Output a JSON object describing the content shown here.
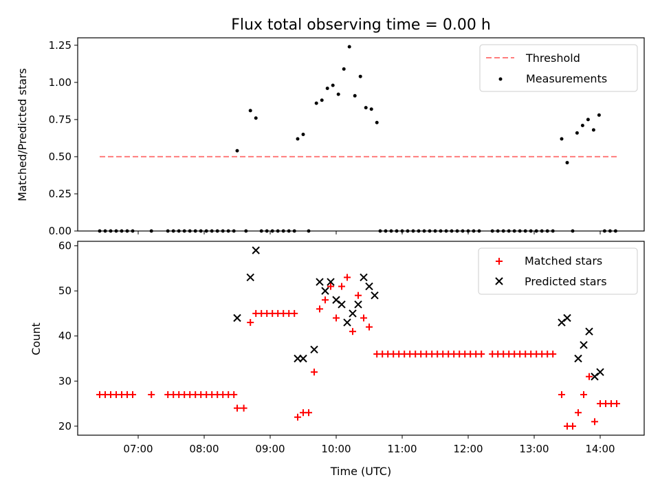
{
  "chart_data": [
    {
      "type": "scatter",
      "title": "Flux total observing time = 0.00 h",
      "ylabel": "Matched/Predicted stars",
      "xlabel": "",
      "xlim": [
        "06:05",
        "14:40"
      ],
      "ylim": [
        0,
        1.3
      ],
      "y_ticks": [
        "0.00",
        "0.25",
        "0.50",
        "0.75",
        "1.00",
        "1.25"
      ],
      "legend_position": "top-right",
      "threshold": {
        "name": "Threshold",
        "value": 0.5,
        "x_start": "06:25",
        "x_end": "14:15",
        "style": "dashed",
        "color": "#ff7b7b"
      },
      "series": [
        {
          "name": "Measurements",
          "color": "#000000",
          "points": [
            [
              "06:25",
              0
            ],
            [
              "06:30",
              0
            ],
            [
              "06:35",
              0
            ],
            [
              "06:40",
              0
            ],
            [
              "06:45",
              0
            ],
            [
              "06:50",
              0
            ],
            [
              "06:55",
              0
            ],
            [
              "07:12",
              0
            ],
            [
              "07:27",
              0
            ],
            [
              "07:32",
              0
            ],
            [
              "07:37",
              0
            ],
            [
              "07:42",
              0
            ],
            [
              "07:47",
              0
            ],
            [
              "07:52",
              0
            ],
            [
              "07:57",
              0
            ],
            [
              "08:02",
              0
            ],
            [
              "08:07",
              0
            ],
            [
              "08:12",
              0
            ],
            [
              "08:17",
              0
            ],
            [
              "08:22",
              0
            ],
            [
              "08:27",
              0
            ],
            [
              "08:30",
              0.54
            ],
            [
              "08:38",
              0
            ],
            [
              "08:42",
              0.81
            ],
            [
              "08:47",
              0.76
            ],
            [
              "08:52",
              0
            ],
            [
              "08:57",
              0
            ],
            [
              "09:02",
              0
            ],
            [
              "09:07",
              0
            ],
            [
              "09:12",
              0
            ],
            [
              "09:17",
              0
            ],
            [
              "09:22",
              0
            ],
            [
              "09:25",
              0.62
            ],
            [
              "09:30",
              0.65
            ],
            [
              "09:35",
              0
            ],
            [
              "09:42",
              0.86
            ],
            [
              "09:47",
              0.88
            ],
            [
              "09:52",
              0.96
            ],
            [
              "09:57",
              0.98
            ],
            [
              "10:02",
              0.92
            ],
            [
              "10:07",
              1.09
            ],
            [
              "10:12",
              1.24
            ],
            [
              "10:17",
              0.91
            ],
            [
              "10:22",
              1.04
            ],
            [
              "10:27",
              0.83
            ],
            [
              "10:32",
              0.82
            ],
            [
              "10:37",
              0.73
            ],
            [
              "10:40",
              0
            ],
            [
              "10:45",
              0
            ],
            [
              "10:50",
              0
            ],
            [
              "10:55",
              0
            ],
            [
              "11:00",
              0
            ],
            [
              "11:05",
              0
            ],
            [
              "11:10",
              0
            ],
            [
              "11:15",
              0
            ],
            [
              "11:20",
              0
            ],
            [
              "11:25",
              0
            ],
            [
              "11:30",
              0
            ],
            [
              "11:35",
              0
            ],
            [
              "11:40",
              0
            ],
            [
              "11:45",
              0
            ],
            [
              "11:50",
              0
            ],
            [
              "11:55",
              0
            ],
            [
              "12:00",
              0
            ],
            [
              "12:05",
              0
            ],
            [
              "12:10",
              0
            ],
            [
              "12:22",
              0
            ],
            [
              "12:27",
              0
            ],
            [
              "12:32",
              0
            ],
            [
              "12:37",
              0
            ],
            [
              "12:42",
              0
            ],
            [
              "12:47",
              0
            ],
            [
              "12:52",
              0
            ],
            [
              "12:57",
              0
            ],
            [
              "13:02",
              0
            ],
            [
              "13:07",
              0
            ],
            [
              "13:12",
              0
            ],
            [
              "13:17",
              0
            ],
            [
              "13:25",
              0.62
            ],
            [
              "13:30",
              0.46
            ],
            [
              "13:35",
              0
            ],
            [
              "13:39",
              0.66
            ],
            [
              "13:44",
              0.71
            ],
            [
              "13:49",
              0.75
            ],
            [
              "13:54",
              0.68
            ],
            [
              "13:59",
              0.78
            ],
            [
              "14:04",
              0
            ],
            [
              "14:09",
              0
            ],
            [
              "14:14",
              0
            ]
          ]
        }
      ]
    },
    {
      "type": "scatter",
      "title": "",
      "ylabel": "Count",
      "xlabel": "Time (UTC)",
      "xlim": [
        "06:05",
        "14:40"
      ],
      "ylim": [
        18,
        61
      ],
      "y_ticks": [
        "20",
        "30",
        "40",
        "50",
        "60"
      ],
      "x_ticks": [
        "07:00",
        "08:00",
        "09:00",
        "10:00",
        "11:00",
        "12:00",
        "13:00",
        "14:00"
      ],
      "legend_position": "top-right",
      "series": [
        {
          "name": "Matched stars",
          "color": "#ff0000",
          "marker": "+",
          "points": [
            [
              "06:25",
              27
            ],
            [
              "06:30",
              27
            ],
            [
              "06:35",
              27
            ],
            [
              "06:40",
              27
            ],
            [
              "06:45",
              27
            ],
            [
              "06:50",
              27
            ],
            [
              "06:55",
              27
            ],
            [
              "07:12",
              27
            ],
            [
              "07:27",
              27
            ],
            [
              "07:32",
              27
            ],
            [
              "07:37",
              27
            ],
            [
              "07:42",
              27
            ],
            [
              "07:47",
              27
            ],
            [
              "07:52",
              27
            ],
            [
              "07:57",
              27
            ],
            [
              "08:02",
              27
            ],
            [
              "08:07",
              27
            ],
            [
              "08:12",
              27
            ],
            [
              "08:17",
              27
            ],
            [
              "08:22",
              27
            ],
            [
              "08:27",
              27
            ],
            [
              "08:30",
              24
            ],
            [
              "08:36",
              24
            ],
            [
              "08:42",
              43
            ],
            [
              "08:47",
              45
            ],
            [
              "08:52",
              45
            ],
            [
              "08:57",
              45
            ],
            [
              "09:02",
              45
            ],
            [
              "09:07",
              45
            ],
            [
              "09:12",
              45
            ],
            [
              "09:17",
              45
            ],
            [
              "09:22",
              45
            ],
            [
              "09:25",
              22
            ],
            [
              "09:30",
              23
            ],
            [
              "09:35",
              23
            ],
            [
              "09:40",
              32
            ],
            [
              "09:45",
              46
            ],
            [
              "09:50",
              48
            ],
            [
              "09:55",
              51
            ],
            [
              "10:00",
              44
            ],
            [
              "10:05",
              51
            ],
            [
              "10:10",
              53
            ],
            [
              "10:15",
              41
            ],
            [
              "10:20",
              49
            ],
            [
              "10:25",
              44
            ],
            [
              "10:30",
              42
            ],
            [
              "10:37",
              36
            ],
            [
              "10:42",
              36
            ],
            [
              "10:47",
              36
            ],
            [
              "10:52",
              36
            ],
            [
              "10:57",
              36
            ],
            [
              "11:02",
              36
            ],
            [
              "11:07",
              36
            ],
            [
              "11:12",
              36
            ],
            [
              "11:17",
              36
            ],
            [
              "11:22",
              36
            ],
            [
              "11:27",
              36
            ],
            [
              "11:32",
              36
            ],
            [
              "11:37",
              36
            ],
            [
              "11:42",
              36
            ],
            [
              "11:47",
              36
            ],
            [
              "11:52",
              36
            ],
            [
              "11:57",
              36
            ],
            [
              "12:02",
              36
            ],
            [
              "12:07",
              36
            ],
            [
              "12:12",
              36
            ],
            [
              "12:22",
              36
            ],
            [
              "12:27",
              36
            ],
            [
              "12:32",
              36
            ],
            [
              "12:37",
              36
            ],
            [
              "12:42",
              36
            ],
            [
              "12:47",
              36
            ],
            [
              "12:52",
              36
            ],
            [
              "12:57",
              36
            ],
            [
              "13:02",
              36
            ],
            [
              "13:07",
              36
            ],
            [
              "13:12",
              36
            ],
            [
              "13:17",
              36
            ],
            [
              "13:25",
              27
            ],
            [
              "13:30",
              20
            ],
            [
              "13:35",
              20
            ],
            [
              "13:40",
              23
            ],
            [
              "13:45",
              27
            ],
            [
              "13:50",
              31
            ],
            [
              "13:55",
              21
            ],
            [
              "14:00",
              25
            ],
            [
              "14:05",
              25
            ],
            [
              "14:10",
              25
            ],
            [
              "14:15",
              25
            ]
          ]
        },
        {
          "name": "Predicted stars",
          "color": "#000000",
          "marker": "x",
          "points": [
            [
              "08:30",
              44
            ],
            [
              "08:42",
              53
            ],
            [
              "08:47",
              59
            ],
            [
              "09:25",
              35
            ],
            [
              "09:30",
              35
            ],
            [
              "09:40",
              37
            ],
            [
              "09:45",
              52
            ],
            [
              "09:50",
              50
            ],
            [
              "09:55",
              52
            ],
            [
              "10:00",
              48
            ],
            [
              "10:05",
              47
            ],
            [
              "10:10",
              43
            ],
            [
              "10:15",
              45
            ],
            [
              "10:20",
              47
            ],
            [
              "10:25",
              53
            ],
            [
              "10:30",
              51
            ],
            [
              "10:35",
              49
            ],
            [
              "13:25",
              43
            ],
            [
              "13:30",
              44
            ],
            [
              "13:40",
              35
            ],
            [
              "13:45",
              38
            ],
            [
              "13:50",
              41
            ],
            [
              "13:55",
              31
            ],
            [
              "14:00",
              32
            ]
          ]
        }
      ]
    }
  ]
}
